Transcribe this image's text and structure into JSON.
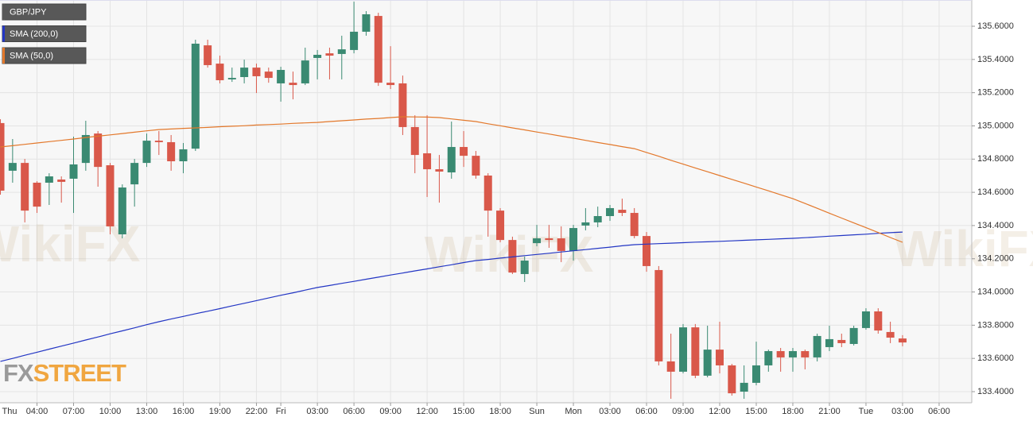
{
  "chart_data": {
    "type": "candlestick",
    "categories": [
      "Thu",
      null,
      null,
      null,
      "04:00",
      null,
      null,
      "07:00",
      null,
      null,
      "10:00",
      null,
      null,
      "13:00",
      null,
      null,
      "16:00",
      null,
      null,
      "19:00",
      null,
      null,
      "22:00",
      null,
      "Fri",
      null,
      null,
      "03:00",
      null,
      null,
      "06:00",
      null,
      null,
      "09:00",
      null,
      null,
      "12:00",
      null,
      null,
      "15:00",
      null,
      null,
      "18:00",
      null,
      null,
      "Sun",
      null,
      null,
      "Mon",
      null,
      null,
      "03:00",
      null,
      null,
      "06:00",
      null,
      null,
      "09:00",
      null,
      null,
      "12:00",
      null,
      null,
      "15:00",
      null,
      null,
      "18:00",
      null,
      null,
      "21:00",
      null,
      null,
      "Tue",
      null,
      null,
      "03:00",
      null,
      null,
      "06:00"
    ],
    "series": [
      {
        "name": "GBP/JPY",
        "type": "candlestick",
        "up_color": "#3a8a72",
        "down_color": "#d9584a",
        "open": [
          null,
          135.017,
          134.73,
          134.777,
          134.658,
          134.658,
          134.677,
          134.682,
          134.777,
          134.954,
          134.763,
          134.347,
          134.648,
          134.777,
          134.911,
          134.902,
          134.787,
          134.863,
          135.485,
          135.375,
          135.28,
          135.294,
          135.351,
          135.327,
          135.256,
          135.26,
          135.256,
          135.409,
          135.437,
          135.433,
          135.457,
          135.567,
          135.662,
          135.26,
          135.256,
          134.993,
          134.835,
          134.739,
          134.72,
          134.873,
          134.82,
          134.701,
          134.49,
          134.313,
          134.108,
          134.294,
          134.323,
          134.323,
          134.247,
          134.4,
          134.419,
          134.457,
          134.495,
          134.476,
          134.337,
          134.132,
          133.582,
          133.52,
          133.787,
          133.496,
          133.653,
          133.558,
          133.4,
          133.453,
          133.558,
          133.644,
          133.606,
          133.644,
          133.606,
          133.668,
          133.711,
          133.687,
          133.783,
          133.883,
          133.759,
          133.72,
          null,
          null,
          null
        ],
        "high": [
          null,
          135.04,
          134.921,
          134.801,
          134.667,
          134.715,
          134.696,
          134.935,
          135.031,
          134.969,
          134.777,
          134.648,
          134.801,
          134.954,
          134.969,
          134.945,
          134.897,
          135.519,
          135.519,
          135.423,
          135.351,
          135.399,
          135.375,
          135.351,
          135.356,
          135.327,
          135.471,
          135.457,
          135.471,
          135.543,
          135.748,
          135.691,
          135.681,
          135.48,
          135.303,
          135.064,
          135.064,
          134.825,
          135.026,
          134.969,
          134.849,
          134.715,
          134.505,
          134.333,
          134.213,
          134.404,
          134.404,
          134.395,
          134.404,
          134.505,
          134.514,
          134.524,
          134.562,
          134.505,
          134.361,
          134.156,
          133.749,
          133.807,
          133.807,
          133.797,
          133.821,
          133.567,
          133.558,
          133.701,
          133.653,
          133.663,
          133.663,
          133.653,
          133.749,
          133.797,
          133.749,
          133.797,
          133.902,
          133.902,
          133.821,
          133.74,
          null,
          null,
          null
        ],
        "low": [
          null,
          134.586,
          134.658,
          134.419,
          134.476,
          134.524,
          134.538,
          134.476,
          134.73,
          134.634,
          134.347,
          134.323,
          134.514,
          134.753,
          134.825,
          134.73,
          134.715,
          134.849,
          135.351,
          135.256,
          135.265,
          135.256,
          135.198,
          135.26,
          135.146,
          135.16,
          135.246,
          135.28,
          135.28,
          135.28,
          135.437,
          135.543,
          135.241,
          135.222,
          134.945,
          134.715,
          134.572,
          134.538,
          134.682,
          134.753,
          134.682,
          134.333,
          134.299,
          134.108,
          134.06,
          134.275,
          134.266,
          134.18,
          134.189,
          134.371,
          134.39,
          134.428,
          134.457,
          134.323,
          134.122,
          133.558,
          133.357,
          133.51,
          133.481,
          133.486,
          133.51,
          133.376,
          133.357,
          133.438,
          133.52,
          133.52,
          133.52,
          133.534,
          133.582,
          133.644,
          133.668,
          133.678,
          133.773,
          133.749,
          133.692,
          133.673,
          null,
          null,
          null
        ],
        "close": [
          null,
          134.61,
          134.777,
          134.49,
          134.514,
          134.696,
          134.663,
          134.768,
          134.945,
          134.753,
          134.395,
          134.629,
          134.777,
          134.911,
          134.902,
          134.787,
          134.859,
          135.495,
          135.366,
          135.275,
          135.289,
          135.351,
          135.299,
          135.289,
          135.337,
          135.246,
          135.394,
          135.428,
          135.423,
          135.461,
          135.567,
          135.672,
          135.26,
          135.246,
          134.993,
          134.825,
          134.739,
          134.725,
          134.873,
          134.82,
          134.701,
          134.49,
          134.313,
          134.117,
          134.189,
          134.323,
          134.313,
          134.247,
          134.385,
          134.419,
          134.457,
          134.505,
          134.476,
          134.337,
          134.156,
          133.582,
          133.52,
          133.787,
          133.496,
          133.653,
          133.558,
          133.39,
          133.453,
          133.558,
          133.644,
          133.606,
          133.644,
          133.606,
          133.735,
          133.716,
          133.692,
          133.783,
          133.883,
          133.768,
          133.725,
          133.696,
          null,
          null,
          null
        ]
      },
      {
        "name": "SMA (200,0)",
        "type": "line",
        "color": "#2336c4",
        "values": [
          null,
          133.582,
          133.6,
          133.619,
          133.637,
          133.656,
          133.674,
          133.692,
          133.711,
          133.729,
          133.748,
          133.766,
          133.784,
          133.803,
          133.821,
          133.837,
          133.853,
          133.869,
          133.884,
          133.9,
          133.916,
          133.932,
          133.948,
          133.964,
          133.98,
          133.995,
          134.011,
          134.027,
          134.039,
          134.052,
          134.064,
          134.077,
          134.089,
          134.102,
          134.114,
          134.127,
          134.139,
          134.152,
          134.164,
          134.177,
          134.189,
          134.196,
          134.204,
          134.211,
          134.219,
          134.226,
          134.233,
          134.241,
          134.248,
          134.255,
          134.263,
          134.27,
          134.278,
          134.285,
          134.288,
          134.291,
          134.294,
          134.297,
          134.3,
          134.302,
          134.305,
          134.308,
          134.311,
          134.314,
          134.317,
          134.32,
          134.323,
          134.327,
          134.331,
          134.336,
          134.34,
          134.344,
          134.348,
          134.353,
          134.357,
          134.361,
          null,
          null,
          null
        ]
      },
      {
        "name": "SMA (50,0)",
        "type": "line",
        "color": "#e3782b",
        "values": [
          null,
          134.873,
          134.881,
          134.889,
          134.897,
          134.905,
          134.913,
          134.921,
          134.93,
          134.938,
          134.946,
          134.954,
          134.962,
          134.97,
          134.978,
          134.981,
          134.985,
          134.988,
          134.991,
          134.995,
          134.998,
          135.001,
          135.005,
          135.008,
          135.011,
          135.015,
          135.018,
          135.021,
          135.026,
          135.031,
          135.036,
          135.041,
          135.045,
          135.05,
          135.055,
          135.054,
          135.053,
          135.05,
          135.042,
          135.034,
          135.026,
          135.013,
          135.001,
          134.988,
          134.976,
          134.963,
          134.951,
          134.938,
          134.926,
          134.913,
          134.9,
          134.888,
          134.875,
          134.863,
          134.84,
          134.817,
          134.793,
          134.77,
          134.747,
          134.724,
          134.701,
          134.678,
          134.655,
          134.632,
          134.609,
          134.585,
          134.562,
          134.533,
          134.504,
          134.474,
          134.445,
          134.416,
          134.387,
          134.358,
          134.328,
          134.299,
          null,
          null,
          null
        ]
      }
    ],
    "ylim": [
      133.333,
      135.758
    ],
    "yticks": [
      {
        "value": 133.4,
        "label": "133.4000"
      },
      {
        "value": 133.6,
        "label": "133.6000"
      },
      {
        "value": 133.8,
        "label": "133.8000"
      },
      {
        "value": 134.0,
        "label": "134.0000"
      },
      {
        "value": 134.2,
        "label": "134.2000"
      },
      {
        "value": 134.4,
        "label": "134.4000"
      },
      {
        "value": 134.6,
        "label": "134.6000"
      },
      {
        "value": 134.8,
        "label": "134.8000"
      },
      {
        "value": 135.0,
        "label": "135.0000"
      },
      {
        "value": 135.2,
        "label": "135.2000"
      },
      {
        "value": 135.4,
        "label": "135.4000"
      },
      {
        "value": 135.6,
        "label": "135.6000"
      }
    ],
    "grid": true,
    "logo": [
      "FX",
      "STREET"
    ],
    "watermark": "WikiFX"
  }
}
